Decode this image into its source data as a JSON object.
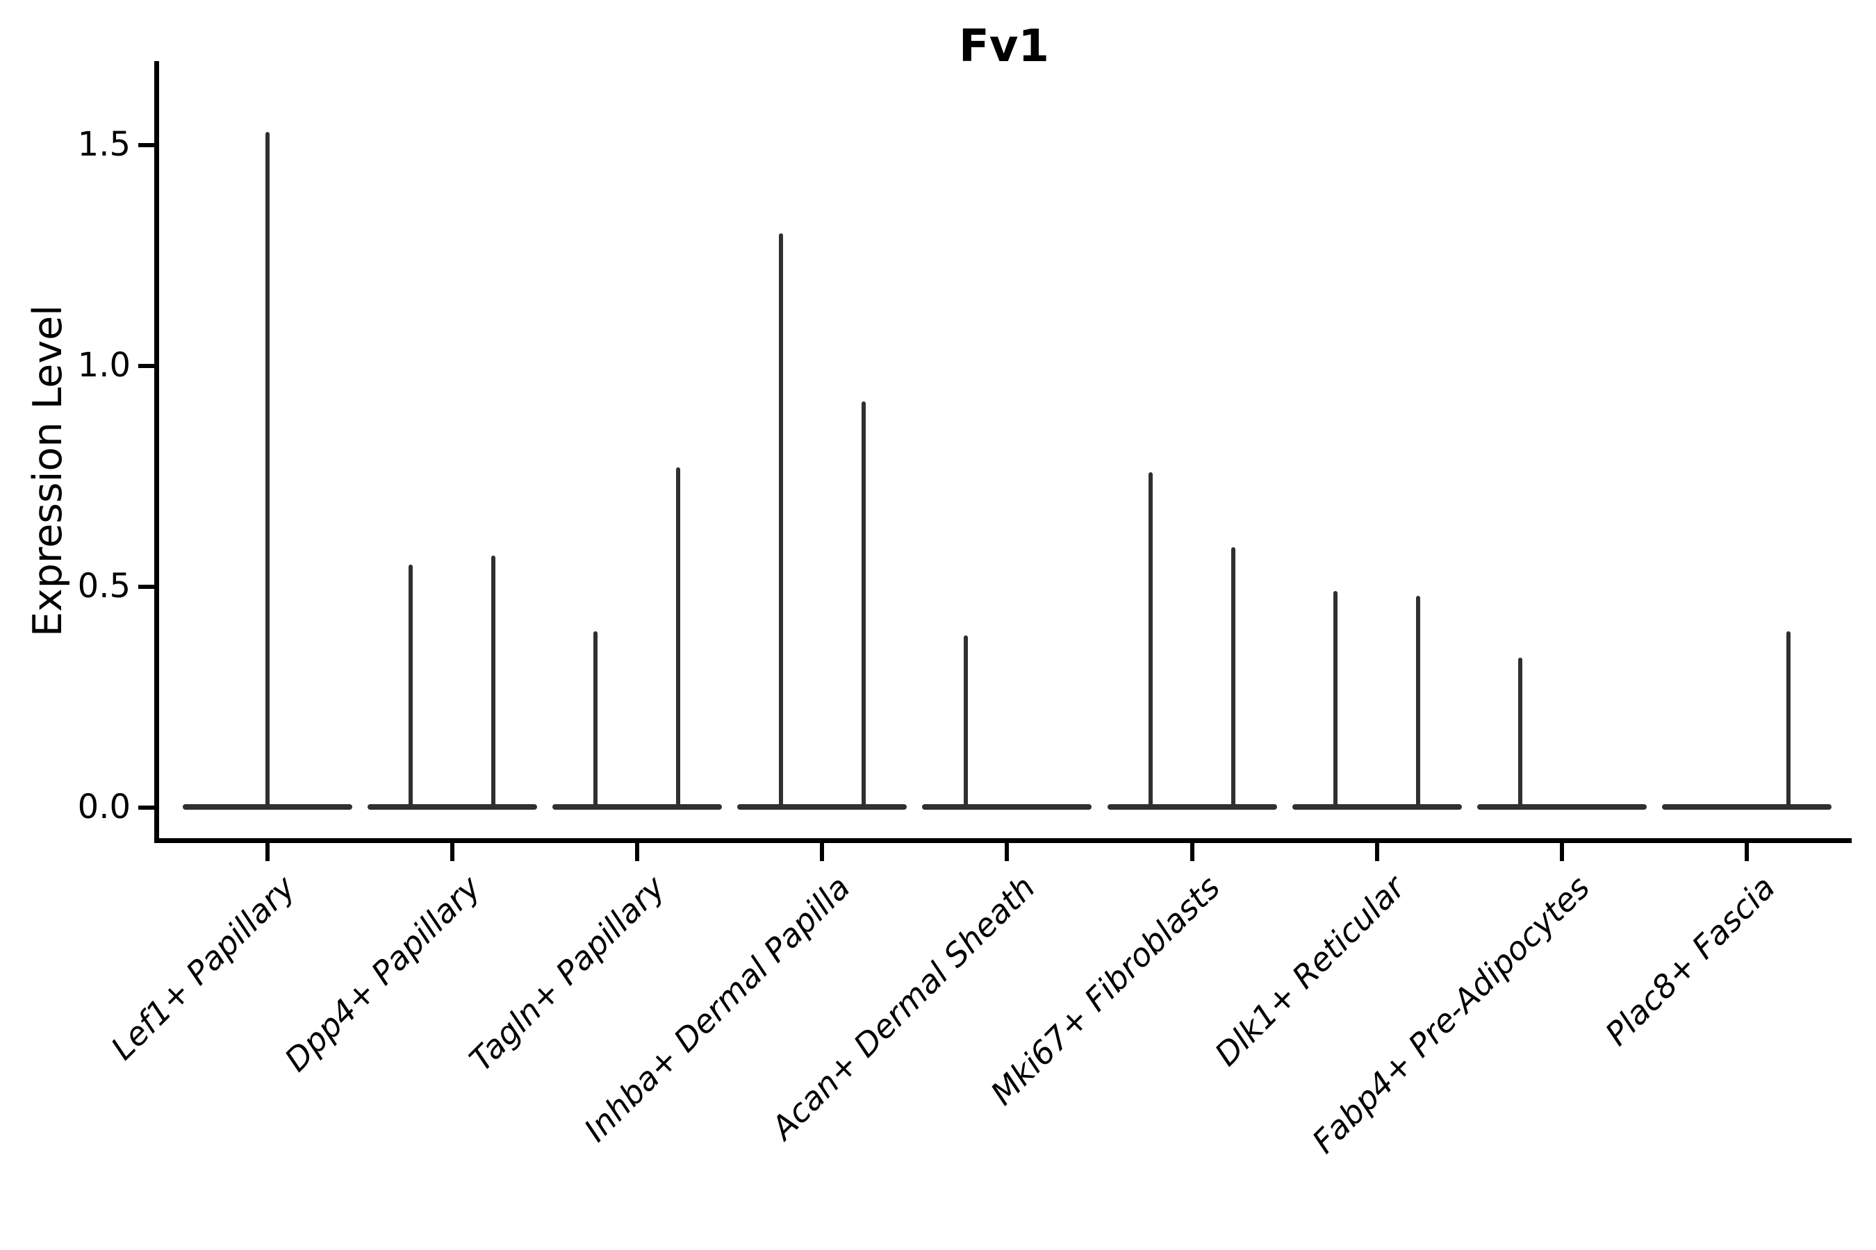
{
  "title": "Fv1",
  "ylabel": "Expression Level",
  "colors": {
    "violin": "#303030",
    "axis": "#000000",
    "text": "#000000",
    "background": "#ffffff"
  },
  "yticks": [
    {
      "value": 0.0,
      "label": "0.0"
    },
    {
      "value": 0.5,
      "label": "0.5"
    },
    {
      "value": 1.0,
      "label": "1.0"
    },
    {
      "value": 1.5,
      "label": "1.5"
    }
  ],
  "chart_data": {
    "type": "violin",
    "title": "Fv1",
    "xlabel": "",
    "ylabel": "Expression Level",
    "ylim": [
      0,
      1.69
    ],
    "grid": false,
    "legend": "none",
    "categories": [
      "Lef1+ Papillary",
      "Dpp4+ Papillary",
      "Tagln+ Papillary",
      "Inhba+ Dermal Papilla",
      "Acan+ Dermal Sheath",
      "Mki67+ Fibroblasts",
      "Dlk1+ Reticular",
      "Fabp4+ Pre-Adipocytes",
      "Plac8+ Fascia"
    ],
    "description": "Each category shows a violin collapsed to a flat bar at expression 0 with thin density spikes rising to the maximum expression values.",
    "violins": [
      {
        "label": "Lef1+ Papillary",
        "baseline": 0,
        "spikes": [
          {
            "position": "center",
            "value": 1.53
          }
        ]
      },
      {
        "label": "Dpp4+ Papillary",
        "baseline": 0,
        "spikes": [
          {
            "position": "left",
            "value": 0.55
          },
          {
            "position": "right",
            "value": 0.57
          }
        ]
      },
      {
        "label": "Tagln+ Papillary",
        "baseline": 0,
        "spikes": [
          {
            "position": "left",
            "value": 0.4
          },
          {
            "position": "right",
            "value": 0.77
          }
        ]
      },
      {
        "label": "Inhba+ Dermal Papilla",
        "baseline": 0,
        "spikes": [
          {
            "position": "left",
            "value": 1.3
          },
          {
            "position": "right",
            "value": 0.92
          }
        ]
      },
      {
        "label": "Acan+ Dermal Sheath",
        "baseline": 0,
        "spikes": [
          {
            "position": "left",
            "value": 0.39
          }
        ]
      },
      {
        "label": "Mki67+ Fibroblasts",
        "baseline": 0,
        "spikes": [
          {
            "position": "left",
            "value": 0.76
          },
          {
            "position": "right",
            "value": 0.59
          }
        ]
      },
      {
        "label": "Dlk1+ Reticular",
        "baseline": 0,
        "spikes": [
          {
            "position": "left",
            "value": 0.49
          },
          {
            "position": "right",
            "value": 0.48
          }
        ]
      },
      {
        "label": "Fabp4+ Pre-Adipocytes",
        "baseline": 0,
        "spikes": [
          {
            "position": "left",
            "value": 0.34
          }
        ]
      },
      {
        "label": "Plac8+ Fascia",
        "baseline": 0,
        "spikes": [
          {
            "position": "right",
            "value": 0.4
          }
        ]
      }
    ]
  }
}
